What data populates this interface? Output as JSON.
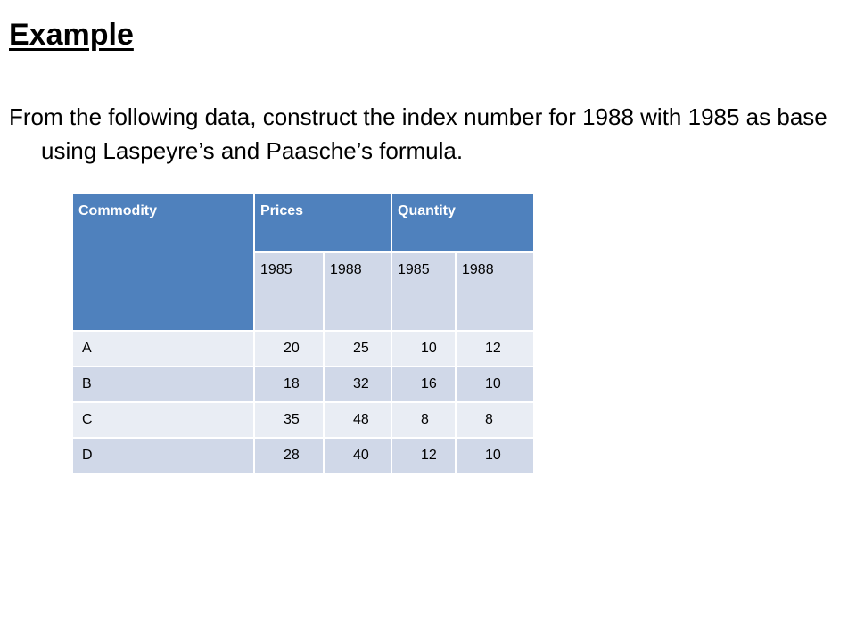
{
  "title": "Example",
  "intro": "From the following data, construct the index number for 1988 with 1985 as base using Laspeyre’s and Paasche’s formula.",
  "table": {
    "headers": {
      "commodity": "Commodity",
      "prices": "Prices",
      "quantity": "Quantity"
    },
    "years": [
      "1985",
      "1988",
      "1985",
      "1988"
    ],
    "rows": [
      {
        "commodity": "A",
        "p1985": "20",
        "p1988": "25",
        "q1985": "10",
        "q1988": "12"
      },
      {
        "commodity": "B",
        "p1985": "18",
        "p1988": "32",
        "q1985": "16",
        "q1988": "10"
      },
      {
        "commodity": "C",
        "p1985": "35",
        "p1988": "48",
        "q1985": "8",
        "q1988": "8"
      },
      {
        "commodity": "D",
        "p1985": "28",
        "p1988": "40",
        "q1985": "12",
        "q1988": "10"
      }
    ],
    "colors": {
      "header": "#4f81bd",
      "row_light": "#e9edf4",
      "row_dark": "#d0d8e8"
    }
  }
}
